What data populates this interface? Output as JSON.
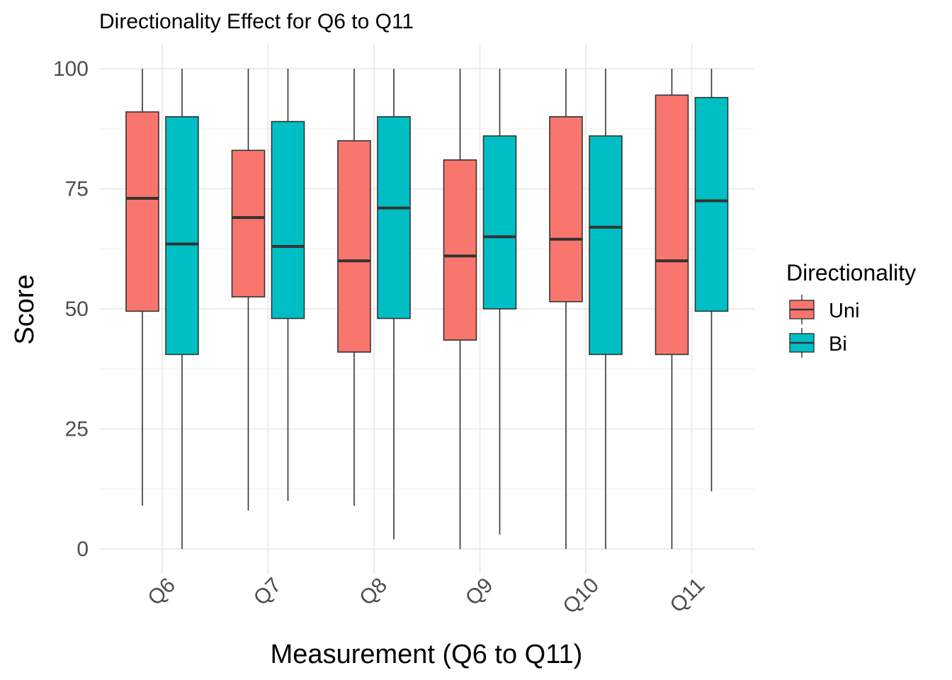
{
  "chart_data": {
    "type": "boxplot",
    "title": "Directionality Effect for Q6 to Q11",
    "xlabel": "Measurement (Q6 to Q11)",
    "ylabel": "Score",
    "ylim": [
      -5,
      103
    ],
    "yticks": [
      0,
      25,
      50,
      75,
      100
    ],
    "grid": true,
    "categories": [
      "Q6",
      "Q7",
      "Q8",
      "Q9",
      "Q10",
      "Q11"
    ],
    "legend": {
      "title": "Directionality",
      "position": "right"
    },
    "series": [
      {
        "name": "Uni",
        "color": "#F8766D",
        "boxes": [
          {
            "min": 9,
            "q1": 49.5,
            "median": 73,
            "q3": 91,
            "max": 100
          },
          {
            "min": 8,
            "q1": 52.5,
            "median": 69,
            "q3": 83,
            "max": 100
          },
          {
            "min": 9,
            "q1": 41,
            "median": 60,
            "q3": 85,
            "max": 100
          },
          {
            "min": 0,
            "q1": 43.5,
            "median": 61,
            "q3": 81,
            "max": 100
          },
          {
            "min": 0,
            "q1": 51.5,
            "median": 64.5,
            "q3": 90,
            "max": 100
          },
          {
            "min": 0,
            "q1": 40.5,
            "median": 60,
            "q3": 94.5,
            "max": 100
          }
        ]
      },
      {
        "name": "Bi",
        "color": "#00BFC4",
        "boxes": [
          {
            "min": 0,
            "q1": 40.5,
            "median": 63.5,
            "q3": 90,
            "max": 100
          },
          {
            "min": 10,
            "q1": 48,
            "median": 63,
            "q3": 89,
            "max": 100
          },
          {
            "min": 2,
            "q1": 48,
            "median": 71,
            "q3": 90,
            "max": 100
          },
          {
            "min": 3,
            "q1": 50,
            "median": 65,
            "q3": 86,
            "max": 100
          },
          {
            "min": 0,
            "q1": 40.5,
            "median": 67,
            "q3": 86,
            "max": 100
          },
          {
            "min": 12,
            "q1": 49.5,
            "median": 72.5,
            "q3": 94,
            "max": 100
          }
        ]
      }
    ]
  }
}
